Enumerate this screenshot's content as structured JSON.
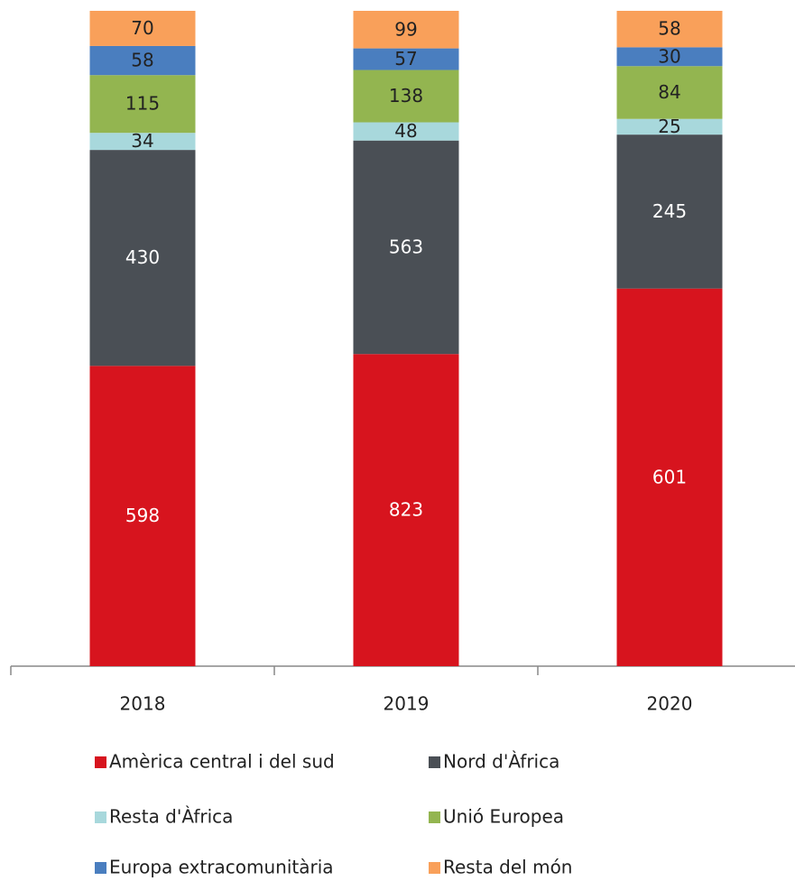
{
  "chart_data": {
    "type": "bar",
    "stacked": true,
    "normalized": true,
    "categories": [
      "2018",
      "2019",
      "2020"
    ],
    "series": [
      {
        "name": "Amèrica central i del sud",
        "color": "#d7141e",
        "values": [
          598,
          823,
          601
        ]
      },
      {
        "name": "Nord d'Àfrica",
        "color": "#4a4f55",
        "values": [
          430,
          563,
          245
        ]
      },
      {
        "name": "Resta d'Àfrica",
        "color": "#a8d8dc",
        "values": [
          34,
          48,
          25
        ]
      },
      {
        "name": "Unió Europea",
        "color": "#93b550",
        "values": [
          115,
          138,
          84
        ]
      },
      {
        "name": "Europa extracomunitària",
        "color": "#4a7ebf",
        "values": [
          58,
          57,
          30
        ]
      },
      {
        "name": "Resta del món",
        "color": "#f9a05a",
        "values": [
          70,
          99,
          58
        ]
      }
    ]
  }
}
